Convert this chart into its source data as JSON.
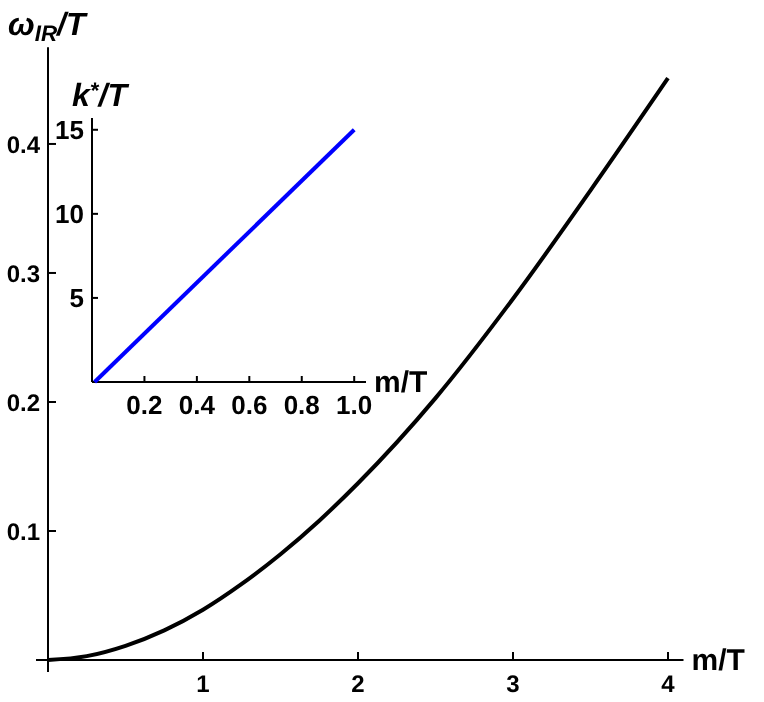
{
  "chart_data": [
    {
      "type": "line",
      "xlabel": "m/T",
      "ylabel": "ω$_{IR}$/T",
      "x": [
        0,
        0.25,
        0.5,
        0.75,
        1,
        1.25,
        1.5,
        1.75,
        2,
        2.5,
        3,
        3.5,
        4
      ],
      "series": [
        {
          "color": "#000000",
          "values": [
            0,
            0.003,
            0.011,
            0.023,
            0.039,
            0.059,
            0.082,
            0.108,
            0.137,
            0.203,
            0.28,
            0.364,
            0.451
          ]
        }
      ],
      "xlim": [
        0,
        4.1
      ],
      "ylim": [
        0,
        0.475
      ],
      "xticks": [
        1,
        2,
        3,
        4
      ],
      "yticks": [
        0.1,
        0.2,
        0.3,
        0.4
      ],
      "grid": false,
      "marker": "none",
      "line_style": "solid"
    },
    {
      "type": "line",
      "xlabel": "m/T",
      "ylabel": "k$^{*}$/T",
      "x": [
        0.01,
        1
      ],
      "series": [
        {
          "color": "#0000ff",
          "values": [
            0,
            15
          ]
        }
      ],
      "xlim": [
        0,
        1.045
      ],
      "ylim": [
        0,
        15.7
      ],
      "xticks": [
        0.2,
        0.4,
        0.6,
        0.8,
        {
          "value": 1,
          "label": "1.0"
        }
      ],
      "yticks": [
        5,
        10,
        15
      ],
      "grid": false,
      "marker": "none",
      "line_style": "solid"
    }
  ]
}
